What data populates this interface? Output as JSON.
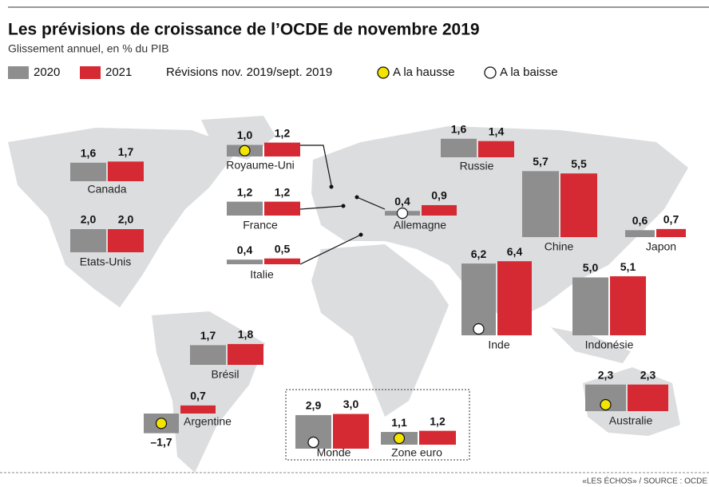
{
  "chart_data": {
    "type": "bar",
    "title": "Les prévisions de croissance de l’OCDE de novembre 2019",
    "subtitle": "Glissement annuel, en % du PIB",
    "revision_title": "Révisions nov. 2019/sept. 2019",
    "revision_legend": [
      {
        "label": "A la hausse",
        "color": "#f3e500"
      },
      {
        "label": "A la baisse",
        "color": "#ffffff"
      }
    ],
    "source": "«LES ÉCHOS» / SOURCE : OCDE",
    "categories": [
      "Canada",
      "Royaume-Uni",
      "France",
      "Italie",
      "Allemagne",
      "Russie",
      "Etats-Unis",
      "Chine",
      "Japon",
      "Inde",
      "Indonésie",
      "Brésil",
      "Argentine",
      "Australie",
      "Monde",
      "Zone euro"
    ],
    "series": [
      {
        "name": "2020",
        "color": "#8e8e8e",
        "values": [
          1.6,
          1.0,
          1.2,
          0.4,
          0.4,
          1.6,
          2.0,
          5.7,
          0.6,
          6.2,
          5.0,
          1.7,
          -1.7,
          2.3,
          2.9,
          1.1
        ],
        "value_labels": [
          "1,6",
          "1,0",
          "1,2",
          "0,4",
          "0,4",
          "1,6",
          "2,0",
          "5,7",
          "0,6",
          "6,2",
          "5,0",
          "1,7",
          "–1,7",
          "2,3",
          "2,9",
          "1,1"
        ]
      },
      {
        "name": "2021",
        "color": "#d52a33",
        "values": [
          1.7,
          1.2,
          1.2,
          0.5,
          0.9,
          1.4,
          2.0,
          5.5,
          0.7,
          6.4,
          5.1,
          1.8,
          0.7,
          2.3,
          3.0,
          1.2
        ],
        "value_labels": [
          "1,7",
          "1,2",
          "1,2",
          "0,5",
          "0,9",
          "1,4",
          "2,0",
          "5,5",
          "0,7",
          "6,4",
          "5,1",
          "1,8",
          "0,7",
          "2,3",
          "3,0",
          "1,2"
        ]
      }
    ],
    "revision_colors": [
      null,
      "#f3e500",
      null,
      null,
      "#ffffff",
      null,
      null,
      null,
      null,
      "#ffffff",
      null,
      null,
      "#f3e500",
      "#f3e500",
      "#ffffff",
      "#f3e500"
    ]
  }
}
